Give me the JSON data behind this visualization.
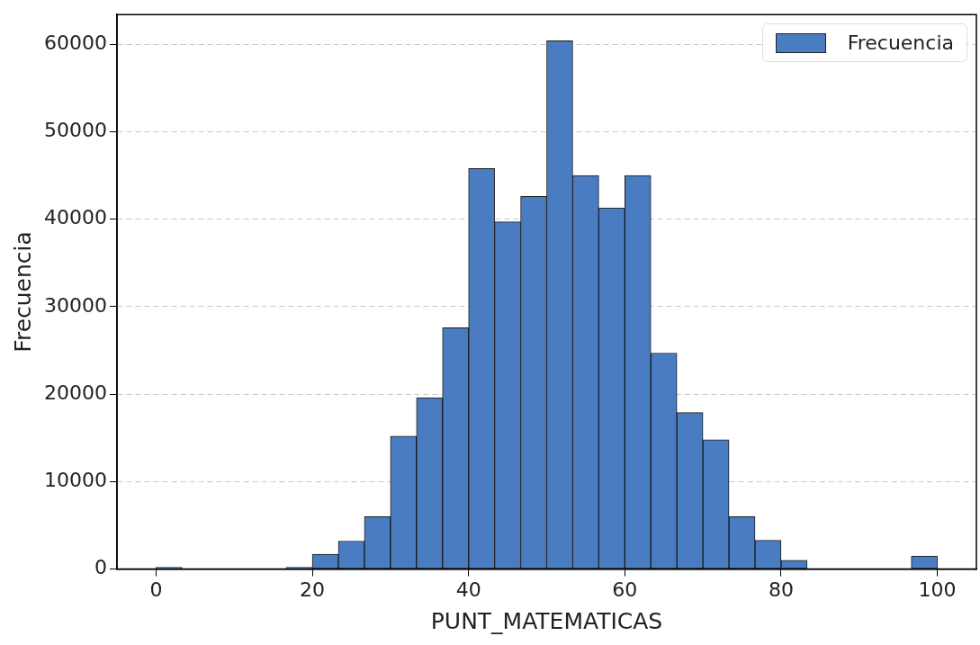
{
  "chart_data": {
    "type": "histogram",
    "xlabel": "PUNT_MATEMATICAS",
    "ylabel": "Frecuencia",
    "bins": [
      0,
      3.333,
      6.667,
      10,
      13.333,
      16.667,
      20,
      23.333,
      26.667,
      30,
      33.333,
      36.667,
      40,
      43.333,
      46.667,
      50,
      53.333,
      56.667,
      60,
      63.333,
      66.667,
      70,
      73.333,
      76.667,
      80,
      83.333,
      86.667,
      90,
      93.333,
      96.667,
      100
    ],
    "series": [
      {
        "name": "Frecuencia",
        "color": "#4a7cc2",
        "values": [
          200,
          0,
          0,
          0,
          0,
          200,
          1700,
          3200,
          6000,
          15200,
          19600,
          27600,
          45800,
          39700,
          42600,
          60400,
          45000,
          41300,
          45000,
          24700,
          17900,
          14800,
          6000,
          3300,
          1000,
          0,
          0,
          0,
          0,
          1500
        ]
      }
    ],
    "xlim": [
      -5,
      105
    ],
    "xticks": [
      0,
      20,
      40,
      60,
      80,
      100
    ],
    "ylim": [
      0,
      63400
    ],
    "yticks": [
      0,
      10000,
      20000,
      30000,
      40000,
      50000,
      60000
    ],
    "grid": "y",
    "legend": "top right"
  }
}
